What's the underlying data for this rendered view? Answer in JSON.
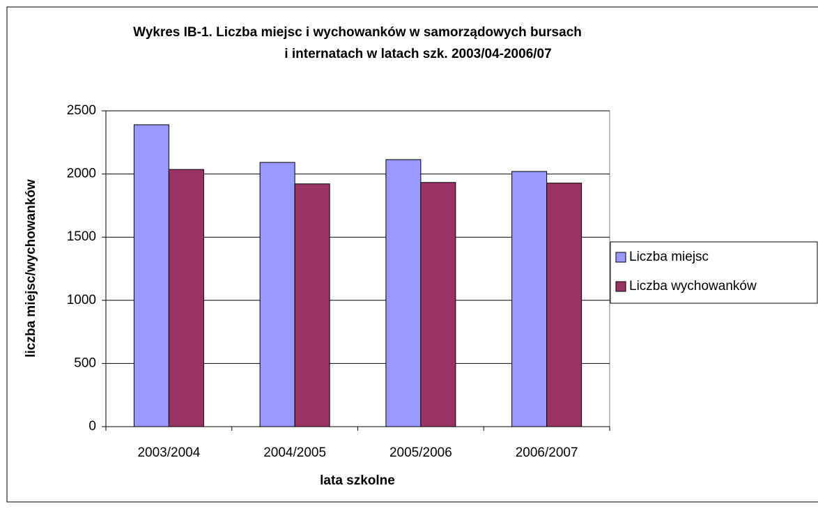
{
  "chart_data": {
    "type": "bar",
    "title": [
      "Wykres IB-1. Liczba miejsc i wychowanków w samorządowych bursach",
      "i internatach w latach szk. 2003/04-2006/07"
    ],
    "x_label": "lata szkolne",
    "y_label": "liczba miejsc/wychowanków",
    "categories": [
      "2003/2004",
      "2004/2005",
      "2005/2006",
      "2006/2007"
    ],
    "series": [
      {
        "name": "Liczba miejsc",
        "color": "#9999ff",
        "values": [
          2390,
          2092,
          2114,
          2020
        ]
      },
      {
        "name": "Liczba wychowanków",
        "color": "#993366",
        "values": [
          2036,
          1922,
          1933,
          1928
        ]
      }
    ],
    "ylim": [
      0,
      2500
    ],
    "yticks": [
      0,
      500,
      1000,
      1500,
      2000,
      2500
    ],
    "grid": true,
    "legend": "right"
  }
}
